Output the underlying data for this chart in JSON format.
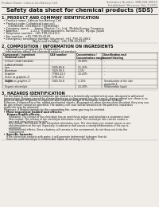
{
  "bg_color": "#f0ede8",
  "header_left": "Product Name: Lithium Ion Battery Cell",
  "header_right1": "Substance Number: SBR-049-00010",
  "header_right2": "Established / Revision: Dec.7.2010",
  "title": "Safety data sheet for chemical products (SDS)",
  "s1_title": "1. PRODUCT AND COMPANY IDENTIFICATION",
  "s1_lines": [
    "  • Product name: Lithium Ion Battery Cell",
    "  • Product code: Cylindrical-type cell",
    "       (14186560, (14186550, (14186504)",
    "  • Company name:      Sanyo Electric Co., Ltd.  Mobile Energy Company",
    "  • Address:              2-22-1  Kamikawaracho, Sumoto-City, Hyogo, Japan",
    "  • Telephone number:  +81-799-20-4111",
    "  • Fax number:  +81-799-26-4120",
    "  • Emergency telephone number (daytime): +81-799-20-2662",
    "                                  (Night and holiday): +81-799-20-4101"
  ],
  "s2_title": "2. COMPOSITION / INFORMATION ON INGREDIENTS",
  "s2_line1": "  • Substance or preparation: Preparation",
  "s2_line2": "    Information about the chemical nature of product:",
  "col_headers": [
    "Component / ingredient\n  Chemical name",
    "CAS number",
    "Concentration /\nConcentration range",
    "Classification and\nhazard labeling"
  ],
  "col_sub": "  Chemical name",
  "table_rows": [
    [
      "  Lithium cobalt tantalate\n  (LiMnCoP(SO4))",
      "  -",
      "  30-60%",
      "  -"
    ],
    [
      "  Iron",
      "  7439-89-8",
      "  15-25%",
      "  -"
    ],
    [
      "  Aluminum",
      "  7429-90-5",
      "  2-5%",
      "  -"
    ],
    [
      "  Graphite\n  (trace as graphite-1)\n  (d4/Mn as graphite-1)",
      "  77881-42-5\n  1782-44-0",
      "  10-20%",
      "  -"
    ],
    [
      "  Copper",
      "  7440-50-8",
      "  5-15%",
      "  Sensitization of the skin\n  group No.2"
    ],
    [
      "  Organic electrolyte",
      "  -",
      "  10-20%",
      "  Inflammable liquid"
    ]
  ],
  "s3_title": "3. HAZARDS IDENTIFICATION",
  "s3_para1": "   For the battery cell, chemical materials are stored in a hermetically sealed metal case, designed to withstand\n   temperature changes caused by charge/discharge cycling normal use. As a result, during normal use, there is no\n   physical danger of ignition or explosion and therefore danger of hazardous materials leakage.",
  "s3_para2": "   However, if exposed to a fire, added mechanical shocks, decomposed, when electro-short-circuited, they may use.\n   As gas release cannot be operated. The battery cell case will be breached at fire-patterns, hazardous\n   materials may be released.",
  "s3_para3": "   Moreover, if heated strongly by the surrounding fire, some gas may be emitted.",
  "s3_b1": "  • Most important hazard and effects:",
  "s3_human": "      Human health effects:",
  "s3_inhal": "         Inhalation: The release of the electrolyte has an anesthesia action and stimulates a respiratory tract.",
  "s3_skin1": "         Skin contact: The release of the electrolyte stimulates a skin. The electrolyte skin contact causes a",
  "s3_skin2": "         sore and stimulation on the skin.",
  "s3_eye1": "         Eye contact: The release of the electrolyte stimulates eyes. The electrolyte eye contact causes a sore",
  "s3_eye2": "         and stimulation on the eye. Especially, a substance that causes a strong inflammation of the eye is",
  "s3_eye3": "         contained.",
  "s3_env1": "         Environmental effects: Since a battery cell remains in the environment, do not throw out it into the",
  "s3_env2": "         environment.",
  "s3_b2": "  • Specific hazards:",
  "s3_spec1": "      If the electrolyte contacts with water, it will generate detrimental hydrogen fluoride.",
  "s3_spec2": "      Since the used electrolyte is inflammable liquid, do not bring close to fire."
}
